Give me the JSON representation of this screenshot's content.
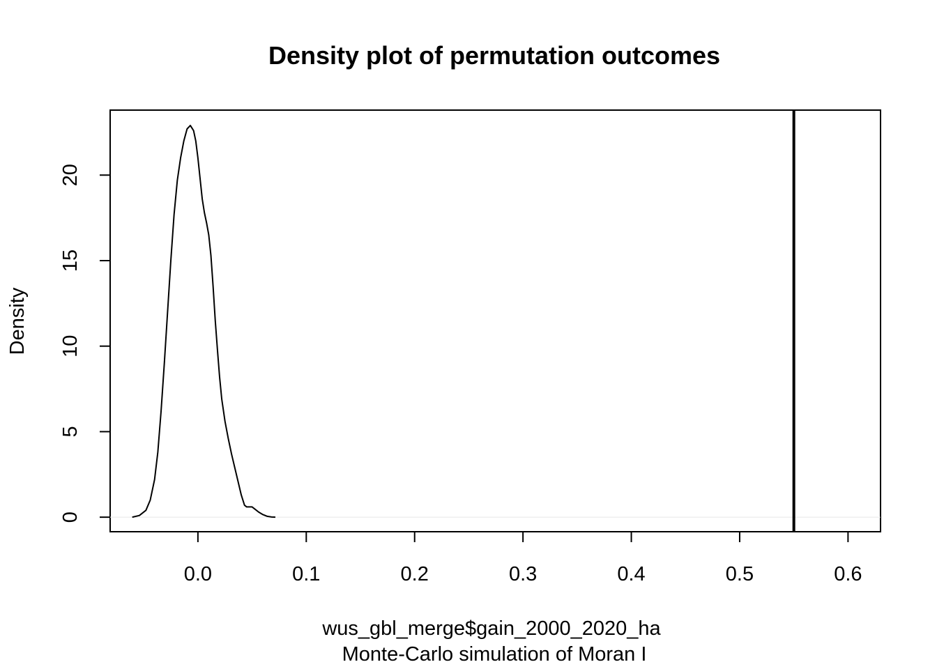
{
  "chart_data": {
    "type": "line",
    "title": "Density plot of permutation outcomes",
    "xlabel": "wus_gbl_merge$gain_2000_2020_ha",
    "subtitle": "Monte-Carlo simulation of Moran I",
    "ylabel": "Density",
    "xlim": [
      -0.081,
      0.63
    ],
    "ylim": [
      -0.85,
      23.8
    ],
    "x_ticks": [
      "0.0",
      "0.1",
      "0.2",
      "0.3",
      "0.4",
      "0.5",
      "0.6"
    ],
    "y_ticks": [
      "0",
      "5",
      "10",
      "15",
      "20"
    ],
    "grid": false,
    "legend": "none",
    "series": [
      {
        "x": [
          -0.0606,
          -0.054,
          -0.048,
          -0.044,
          -0.04,
          -0.037,
          -0.034,
          -0.031,
          -0.028,
          -0.025,
          -0.022,
          -0.019,
          -0.016,
          -0.013,
          -0.01,
          -0.007,
          -0.004,
          -0.002,
          0.0,
          0.002,
          0.004,
          0.006,
          0.008,
          0.01,
          0.012,
          0.014,
          0.016,
          0.018,
          0.02,
          0.022,
          0.025,
          0.028,
          0.031,
          0.034,
          0.037,
          0.04,
          0.043,
          0.045,
          0.047,
          0.05,
          0.053,
          0.056,
          0.06,
          0.064,
          0.068,
          0.0715
        ],
        "y": [
          0.0,
          0.1,
          0.4,
          1.0,
          2.2,
          3.8,
          6.2,
          9.0,
          12.0,
          15.0,
          17.7,
          19.7,
          21.0,
          22.0,
          22.7,
          22.9,
          22.6,
          22.0,
          21.0,
          19.8,
          18.6,
          17.8,
          17.2,
          16.5,
          15.3,
          13.5,
          11.5,
          9.8,
          8.2,
          6.9,
          5.6,
          4.6,
          3.7,
          2.9,
          2.1,
          1.3,
          0.7,
          0.6,
          0.6,
          0.6,
          0.45,
          0.3,
          0.15,
          0.05,
          0.01,
          0.0
        ]
      }
    ],
    "reference_line": {
      "x": 0.55
    }
  }
}
